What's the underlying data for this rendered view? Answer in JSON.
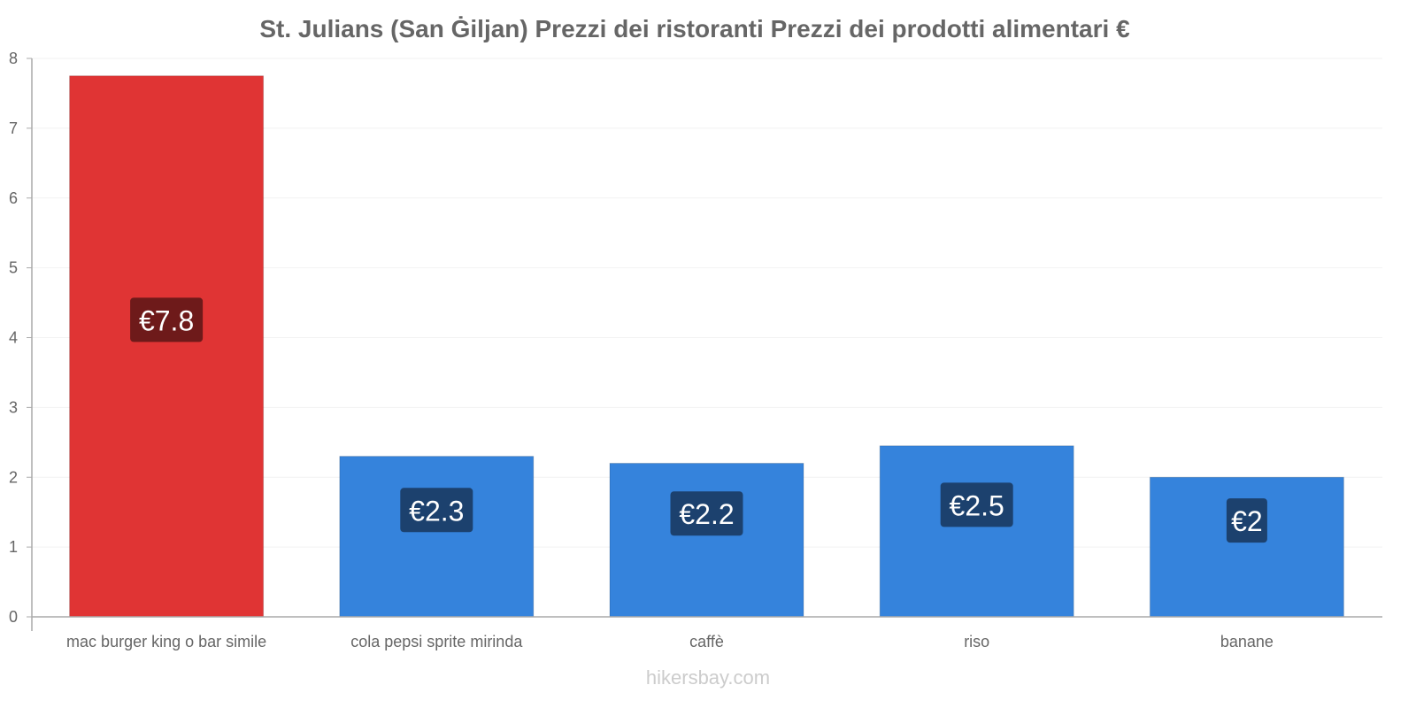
{
  "chart_data": {
    "type": "bar",
    "title": "St. Julians (San Ġiljan) Prezzi dei ristoranti Prezzi dei prodotti alimentari €",
    "categories": [
      "mac burger king o bar simile",
      "cola pepsi sprite mirinda",
      "caffè",
      "riso",
      "banane"
    ],
    "values": [
      7.75,
      2.3,
      2.2,
      2.45,
      2.0
    ],
    "data_labels": [
      "€7.8",
      "€2.3",
      "€2.2",
      "€2.5",
      "€2"
    ],
    "colors": [
      "#e03434",
      "#3583dc",
      "#3583dc",
      "#3583dc",
      "#3583dc"
    ],
    "label_bg_colors": [
      "#6e1a1a",
      "#1c416e",
      "#1c416e",
      "#1c416e",
      "#1c416e"
    ],
    "xlabel": "",
    "ylabel": "",
    "ylim": [
      0,
      8
    ],
    "yticks": [
      0,
      1,
      2,
      3,
      4,
      5,
      6,
      7,
      8
    ],
    "grid": true
  },
  "watermark": "hikersbay.com"
}
